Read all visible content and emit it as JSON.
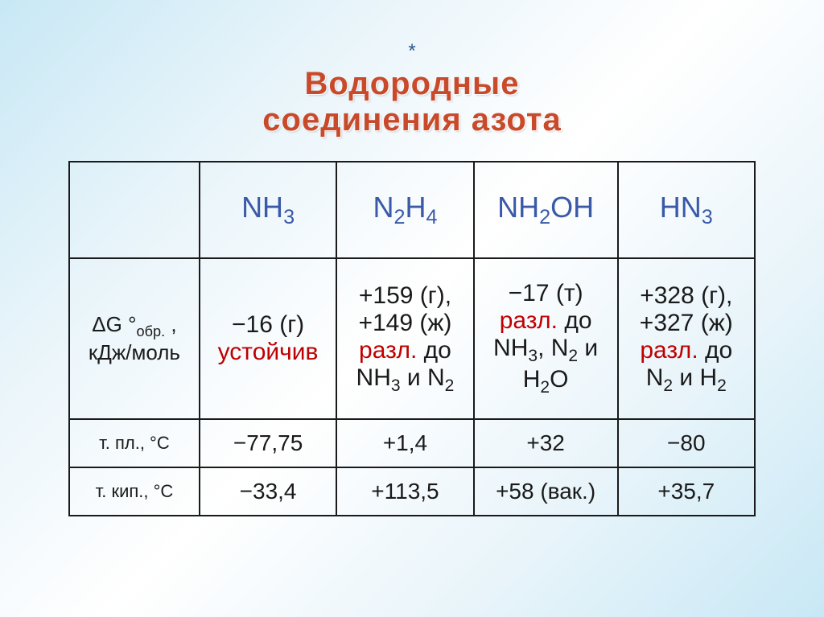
{
  "title": {
    "asterisk": "*",
    "text": "Водородные соединения азота",
    "text_color": "#c94a2a",
    "asterisk_color": "#2a5a8a",
    "fontsize": 40
  },
  "table": {
    "header_color": "#3a5aa8",
    "border_color": "#1a1a1a",
    "red_color": "#c00000",
    "black_color": "#1a1a1a",
    "columns": {
      "c1": {
        "formula": "NH",
        "sub": "3"
      },
      "c2": {
        "formula_p1": "N",
        "sub1": "2",
        "formula_p2": "H",
        "sub2": "4"
      },
      "c3": {
        "formula_p1": "NH",
        "sub1": "2",
        "formula_p2": "OH"
      },
      "c4": {
        "formula_p1": "HN",
        "sub1": "3"
      }
    },
    "row1": {
      "label_l1": "ΔG °",
      "label_sub": "обр.",
      "label_l2": " , кДж/моль",
      "c1_l1": "−16 (г)",
      "c1_l2": "устойчив",
      "c2_l1": "+159 (г), +149 (ж)",
      "c2_l2": "разл.",
      "c2_l3": " до NH",
      "c2_sub1": "3",
      "c2_l4": " и N",
      "c2_sub2": "2",
      "c3_l1": "−17 (т)",
      "c3_l2": "разл.",
      "c3_l3": " до NH",
      "c3_sub1": "3",
      "c3_l4": ", N",
      "c3_sub2": "2",
      "c3_l5": " и H",
      "c3_sub3": "2",
      "c3_l6": "O",
      "c4_l1": "+328 (г), +327 (ж)",
      "c4_l2": "разл.",
      "c4_l3": " до N",
      "c4_sub1": "2",
      "c4_l4": " и H",
      "c4_sub2": "2"
    },
    "row2": {
      "label": "т. пл., °C",
      "c1": "−77,75",
      "c2": "+1,4",
      "c3": "+32",
      "c4": "−80"
    },
    "row3": {
      "label": "т. кип., °C",
      "c1": "−33,4",
      "c2": "+113,5",
      "c3": "+58 (вак.)",
      "c4": "+35,7"
    }
  }
}
